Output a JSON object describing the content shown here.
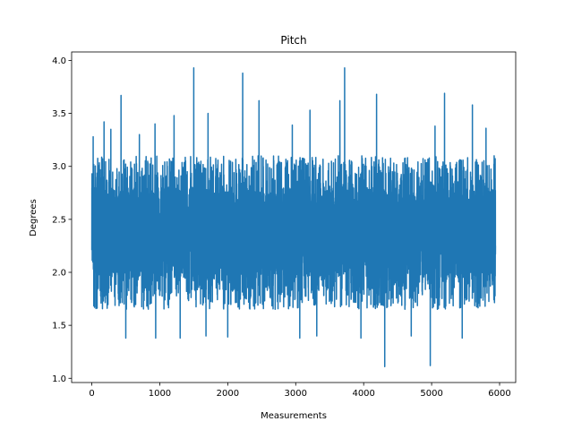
{
  "chart_data": {
    "type": "line",
    "title": "Pitch",
    "xlabel": "Measurements",
    "ylabel": "Degrees",
    "xlim": [
      -297,
      6237
    ],
    "ylim": [
      0.96,
      4.08
    ],
    "xticks": [
      0,
      1000,
      2000,
      3000,
      4000,
      5000,
      6000
    ],
    "yticks": [
      1.0,
      1.5,
      2.0,
      2.5,
      3.0,
      3.5,
      4.0
    ],
    "series": [
      {
        "name": "Pitch",
        "color": "#1f77b4",
        "n_points": 5941,
        "typical_range": [
          1.65,
          3.1
        ],
        "dense_core": [
          1.95,
          2.8
        ],
        "x_start": 0,
        "x_end": 5940,
        "notable_points": [
          {
            "x": 5,
            "y": 2.8
          },
          {
            "x": 20,
            "y": 3.28
          },
          {
            "x": 40,
            "y": 1.67
          },
          {
            "x": 180,
            "y": 3.42
          },
          {
            "x": 280,
            "y": 3.35
          },
          {
            "x": 430,
            "y": 3.67
          },
          {
            "x": 500,
            "y": 1.38
          },
          {
            "x": 700,
            "y": 3.3
          },
          {
            "x": 930,
            "y": 3.4
          },
          {
            "x": 940,
            "y": 1.38
          },
          {
            "x": 1210,
            "y": 3.48
          },
          {
            "x": 1300,
            "y": 1.38
          },
          {
            "x": 1500,
            "y": 3.93
          },
          {
            "x": 1680,
            "y": 1.4
          },
          {
            "x": 1710,
            "y": 3.5
          },
          {
            "x": 2000,
            "y": 1.39
          },
          {
            "x": 2220,
            "y": 3.88
          },
          {
            "x": 2460,
            "y": 3.62
          },
          {
            "x": 2950,
            "y": 3.39
          },
          {
            "x": 3060,
            "y": 1.38
          },
          {
            "x": 3210,
            "y": 3.53
          },
          {
            "x": 3310,
            "y": 1.4
          },
          {
            "x": 3650,
            "y": 3.62
          },
          {
            "x": 3720,
            "y": 3.93
          },
          {
            "x": 3960,
            "y": 1.38
          },
          {
            "x": 4190,
            "y": 3.68
          },
          {
            "x": 4310,
            "y": 1.11
          },
          {
            "x": 4700,
            "y": 1.4
          },
          {
            "x": 4980,
            "y": 1.12
          },
          {
            "x": 5050,
            "y": 3.38
          },
          {
            "x": 5190,
            "y": 3.69
          },
          {
            "x": 5450,
            "y": 1.38
          },
          {
            "x": 5600,
            "y": 3.58
          },
          {
            "x": 5800,
            "y": 3.36
          },
          {
            "x": 5920,
            "y": 3.1
          },
          {
            "x": 5940,
            "y": 2.25
          }
        ]
      }
    ]
  }
}
